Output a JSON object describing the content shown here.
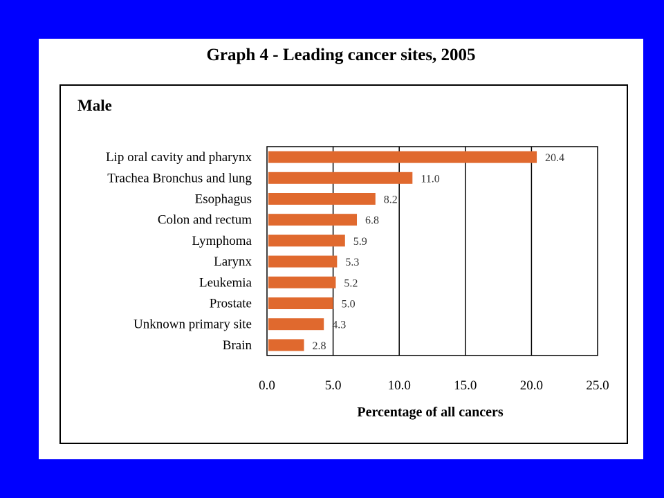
{
  "page": {
    "title": "Graph 4 - Leading cancer sites, 2005",
    "panel": "Male"
  },
  "colors": {
    "background": "#0000ff",
    "bar": "#e0692e",
    "grid": "#000000"
  },
  "chart_data": {
    "type": "bar",
    "orientation": "horizontal",
    "title": "Graph 4 - Leading cancer sites, 2005",
    "subtitle": "Male",
    "xlabel": "Percentage of all cancers",
    "ylabel": "",
    "xlim": [
      0,
      25
    ],
    "xticks": [
      "0.0",
      "5.0",
      "10.0",
      "15.0",
      "20.0",
      "25.0"
    ],
    "grid": "vertical",
    "categories": [
      "Lip oral cavity and pharynx",
      "Trachea Bronchus and lung",
      "Esophagus",
      "Colon and rectum",
      "Lymphoma",
      "Larynx",
      "Leukemia",
      "Prostate",
      "Unknown primary site",
      "Brain"
    ],
    "values": [
      20.4,
      11.0,
      8.2,
      6.8,
      5.9,
      5.3,
      5.2,
      5.0,
      4.3,
      2.8
    ],
    "value_labels": [
      "20.4",
      "11.0",
      "8.2",
      "6.8",
      "5.9",
      "5.3",
      "5.2",
      "5.0",
      "4.3",
      "2.8"
    ]
  }
}
